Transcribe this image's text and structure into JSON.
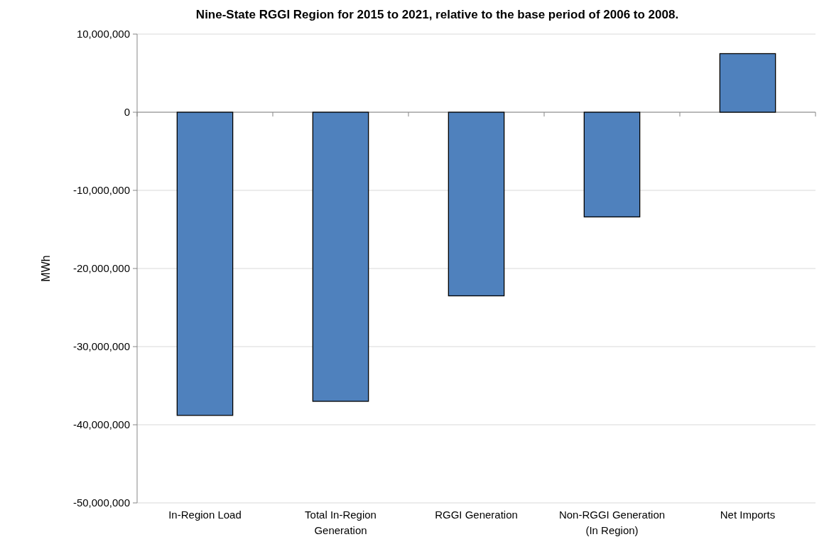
{
  "chart_data": {
    "type": "bar",
    "title": "Nine-State RGGI Region for 2015 to 2021, relative to the base period of 2006 to 2008.",
    "ylabel": "MWh",
    "categories": [
      "In-Region Load",
      "Total In-Region Generation",
      "RGGI Generation",
      "Non-RGGI Generation (In Region)",
      "Net Imports"
    ],
    "values": [
      -38800000,
      -37000000,
      -23500000,
      -13400000,
      7500000
    ],
    "color": "#4f81bd",
    "ylim": [
      -50000000,
      10000000
    ],
    "yticks": [
      {
        "value": -50000000,
        "label": "-50,000,000"
      },
      {
        "value": -40000000,
        "label": "-40,000,000"
      },
      {
        "value": -30000000,
        "label": "-30,000,000"
      },
      {
        "value": -20000000,
        "label": "-20,000,000"
      },
      {
        "value": -10000000,
        "label": "-10,000,000"
      },
      0,
      {
        "value": 10000000,
        "label": "10,000,000"
      }
    ],
    "grid": "y"
  }
}
